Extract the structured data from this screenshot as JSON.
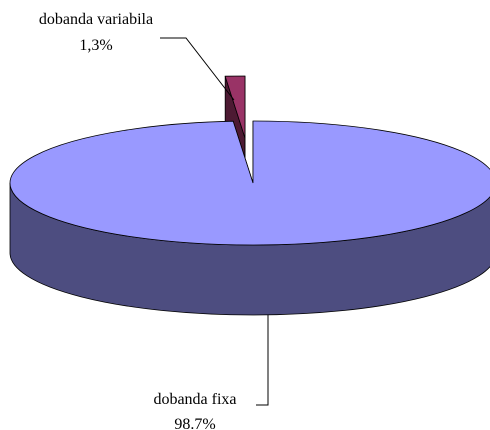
{
  "chart_data": {
    "type": "pie3d",
    "categories": [
      "dobanda variabila",
      "dobanda fixa"
    ],
    "values": [
      1.3,
      98.7
    ],
    "value_labels": [
      "1,3%",
      "98.7%"
    ],
    "colors": [
      "#993366",
      "#9999ff"
    ]
  }
}
